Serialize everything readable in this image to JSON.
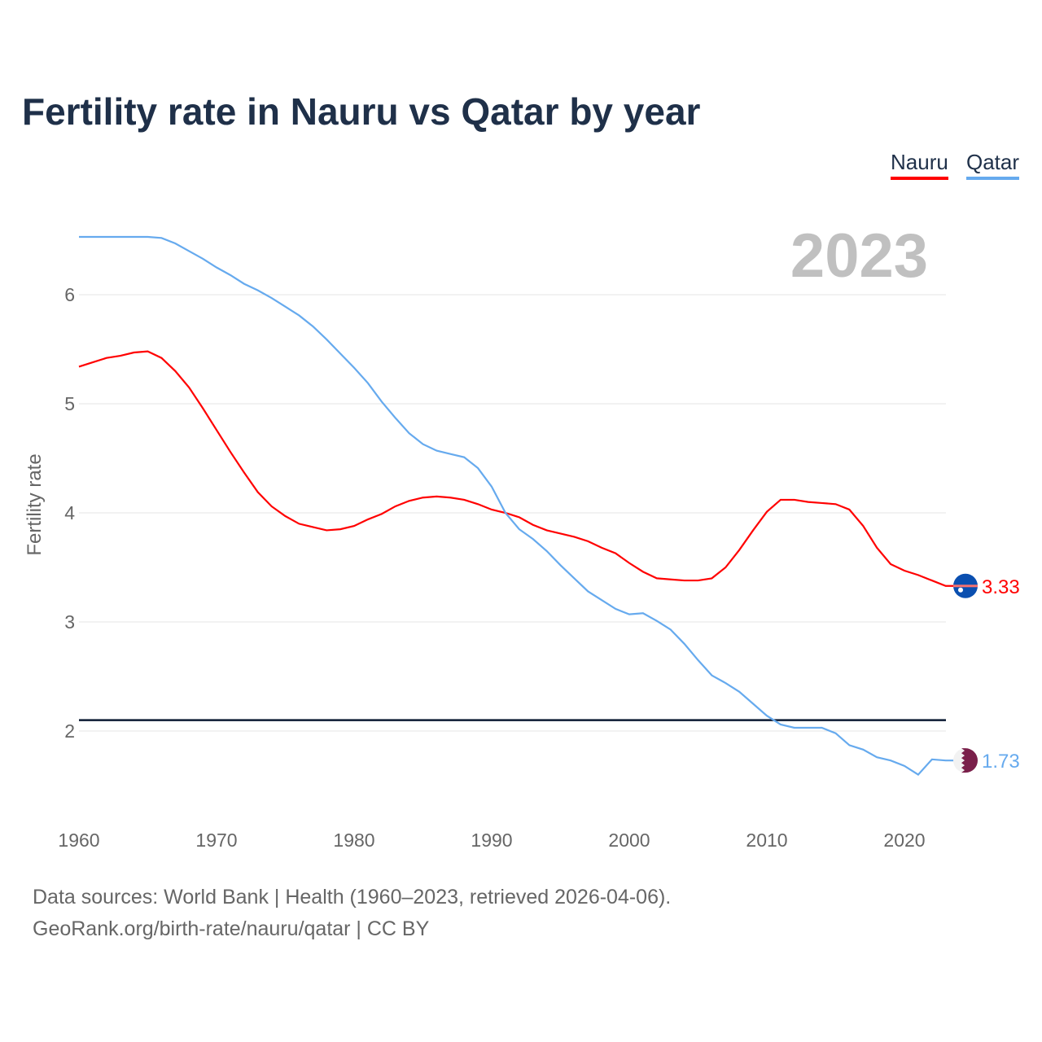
{
  "chart_data": {
    "type": "line",
    "title": "Fertility rate in Nauru vs Qatar by year",
    "xlabel": "",
    "ylabel": "Fertility rate",
    "year_label": "2023",
    "xlim": [
      1960,
      2023
    ],
    "ylim": [
      1.3,
      6.6
    ],
    "x_ticks": [
      1960,
      1970,
      1980,
      1990,
      2000,
      2010,
      2020
    ],
    "y_ticks": [
      2,
      3,
      4,
      5,
      6
    ],
    "reference_line": 2.1,
    "grid": true,
    "legend_position": "top-right",
    "x": [
      1960,
      1961,
      1962,
      1963,
      1964,
      1965,
      1966,
      1967,
      1968,
      1969,
      1970,
      1971,
      1972,
      1973,
      1974,
      1975,
      1976,
      1977,
      1978,
      1979,
      1980,
      1981,
      1982,
      1983,
      1984,
      1985,
      1986,
      1987,
      1988,
      1989,
      1990,
      1991,
      1992,
      1993,
      1994,
      1995,
      1996,
      1997,
      1998,
      1999,
      2000,
      2001,
      2002,
      2003,
      2004,
      2005,
      2006,
      2007,
      2008,
      2009,
      2010,
      2011,
      2012,
      2013,
      2014,
      2015,
      2016,
      2017,
      2018,
      2019,
      2020,
      2021,
      2022,
      2023
    ],
    "series": [
      {
        "name": "Nauru",
        "color": "#ff0000",
        "end_label": "3.33",
        "values": [
          5.34,
          5.38,
          5.42,
          5.44,
          5.47,
          5.48,
          5.42,
          5.3,
          5.15,
          4.96,
          4.76,
          4.56,
          4.37,
          4.19,
          4.06,
          3.97,
          3.9,
          3.87,
          3.84,
          3.85,
          3.88,
          3.94,
          3.99,
          4.06,
          4.11,
          4.14,
          4.15,
          4.14,
          4.12,
          4.08,
          4.03,
          4.0,
          3.96,
          3.89,
          3.84,
          3.81,
          3.78,
          3.74,
          3.68,
          3.63,
          3.54,
          3.46,
          3.4,
          3.39,
          3.38,
          3.38,
          3.4,
          3.5,
          3.66,
          3.84,
          4.01,
          4.12,
          4.12,
          4.1,
          4.09,
          4.08,
          4.03,
          3.88,
          3.68,
          3.53,
          3.47,
          3.43,
          3.38,
          3.33
        ]
      },
      {
        "name": "Qatar",
        "color": "#66aaee",
        "end_label": "1.73",
        "values": [
          6.53,
          6.53,
          6.53,
          6.53,
          6.53,
          6.53,
          6.52,
          6.47,
          6.4,
          6.33,
          6.25,
          6.18,
          6.1,
          6.04,
          5.97,
          5.89,
          5.81,
          5.71,
          5.59,
          5.46,
          5.33,
          5.19,
          5.02,
          4.87,
          4.73,
          4.63,
          4.57,
          4.54,
          4.51,
          4.41,
          4.24,
          4.0,
          3.85,
          3.76,
          3.65,
          3.52,
          3.4,
          3.28,
          3.2,
          3.12,
          3.07,
          3.08,
          3.01,
          2.93,
          2.8,
          2.65,
          2.51,
          2.44,
          2.36,
          2.25,
          2.14,
          2.06,
          2.03,
          2.03,
          2.03,
          1.98,
          1.87,
          1.83,
          1.76,
          1.73,
          1.68,
          1.6,
          1.74,
          1.73
        ]
      }
    ]
  },
  "legend": {
    "nauru": "Nauru",
    "qatar": "Qatar"
  },
  "sources": {
    "line1": "Data sources: World Bank | Health (1960–2023, retrieved 2026-04-06).",
    "line2": "GeoRank.org/birth-rate/nauru/qatar | CC BY"
  }
}
